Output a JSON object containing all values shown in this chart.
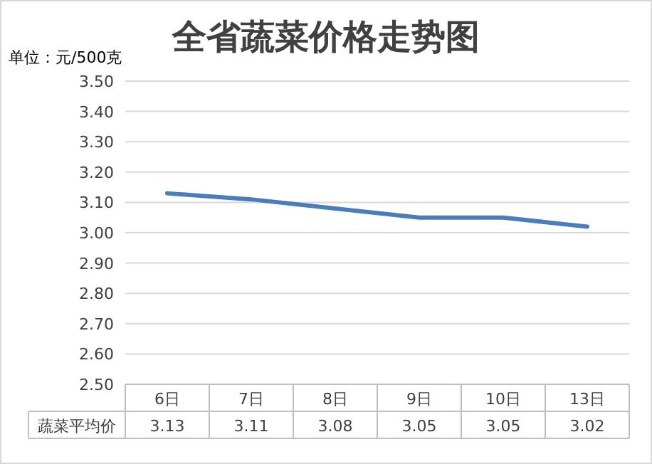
{
  "chart_data": {
    "type": "line",
    "title": "全省蔬菜价格走势图",
    "annotations": [
      "单位：元/500克"
    ],
    "categories": [
      "6日",
      "7日",
      "8日",
      "9日",
      "10日",
      "13日"
    ],
    "series": [
      {
        "name": "蔬菜平均价",
        "color": "#4a7ebb",
        "values": [
          3.13,
          3.11,
          3.08,
          3.05,
          3.05,
          3.02
        ]
      }
    ],
    "ylim": [
      2.5,
      3.5
    ],
    "yticks": [
      {
        "value": 2.5,
        "label": "2.50"
      },
      {
        "value": 2.6,
        "label": "2.60"
      },
      {
        "value": 2.7,
        "label": "2.70"
      },
      {
        "value": 2.8,
        "label": "2.80"
      },
      {
        "value": 2.9,
        "label": "2.90"
      },
      {
        "value": 3.0,
        "label": "3.00"
      },
      {
        "value": 3.1,
        "label": "3.10"
      },
      {
        "value": 3.2,
        "label": "3.20"
      },
      {
        "value": 3.3,
        "label": "3.30"
      },
      {
        "value": 3.4,
        "label": "3.40"
      },
      {
        "value": 3.5,
        "label": "3.50"
      }
    ],
    "grid": "y",
    "data_labels": true,
    "marker": "none",
    "line_style": "solid"
  }
}
